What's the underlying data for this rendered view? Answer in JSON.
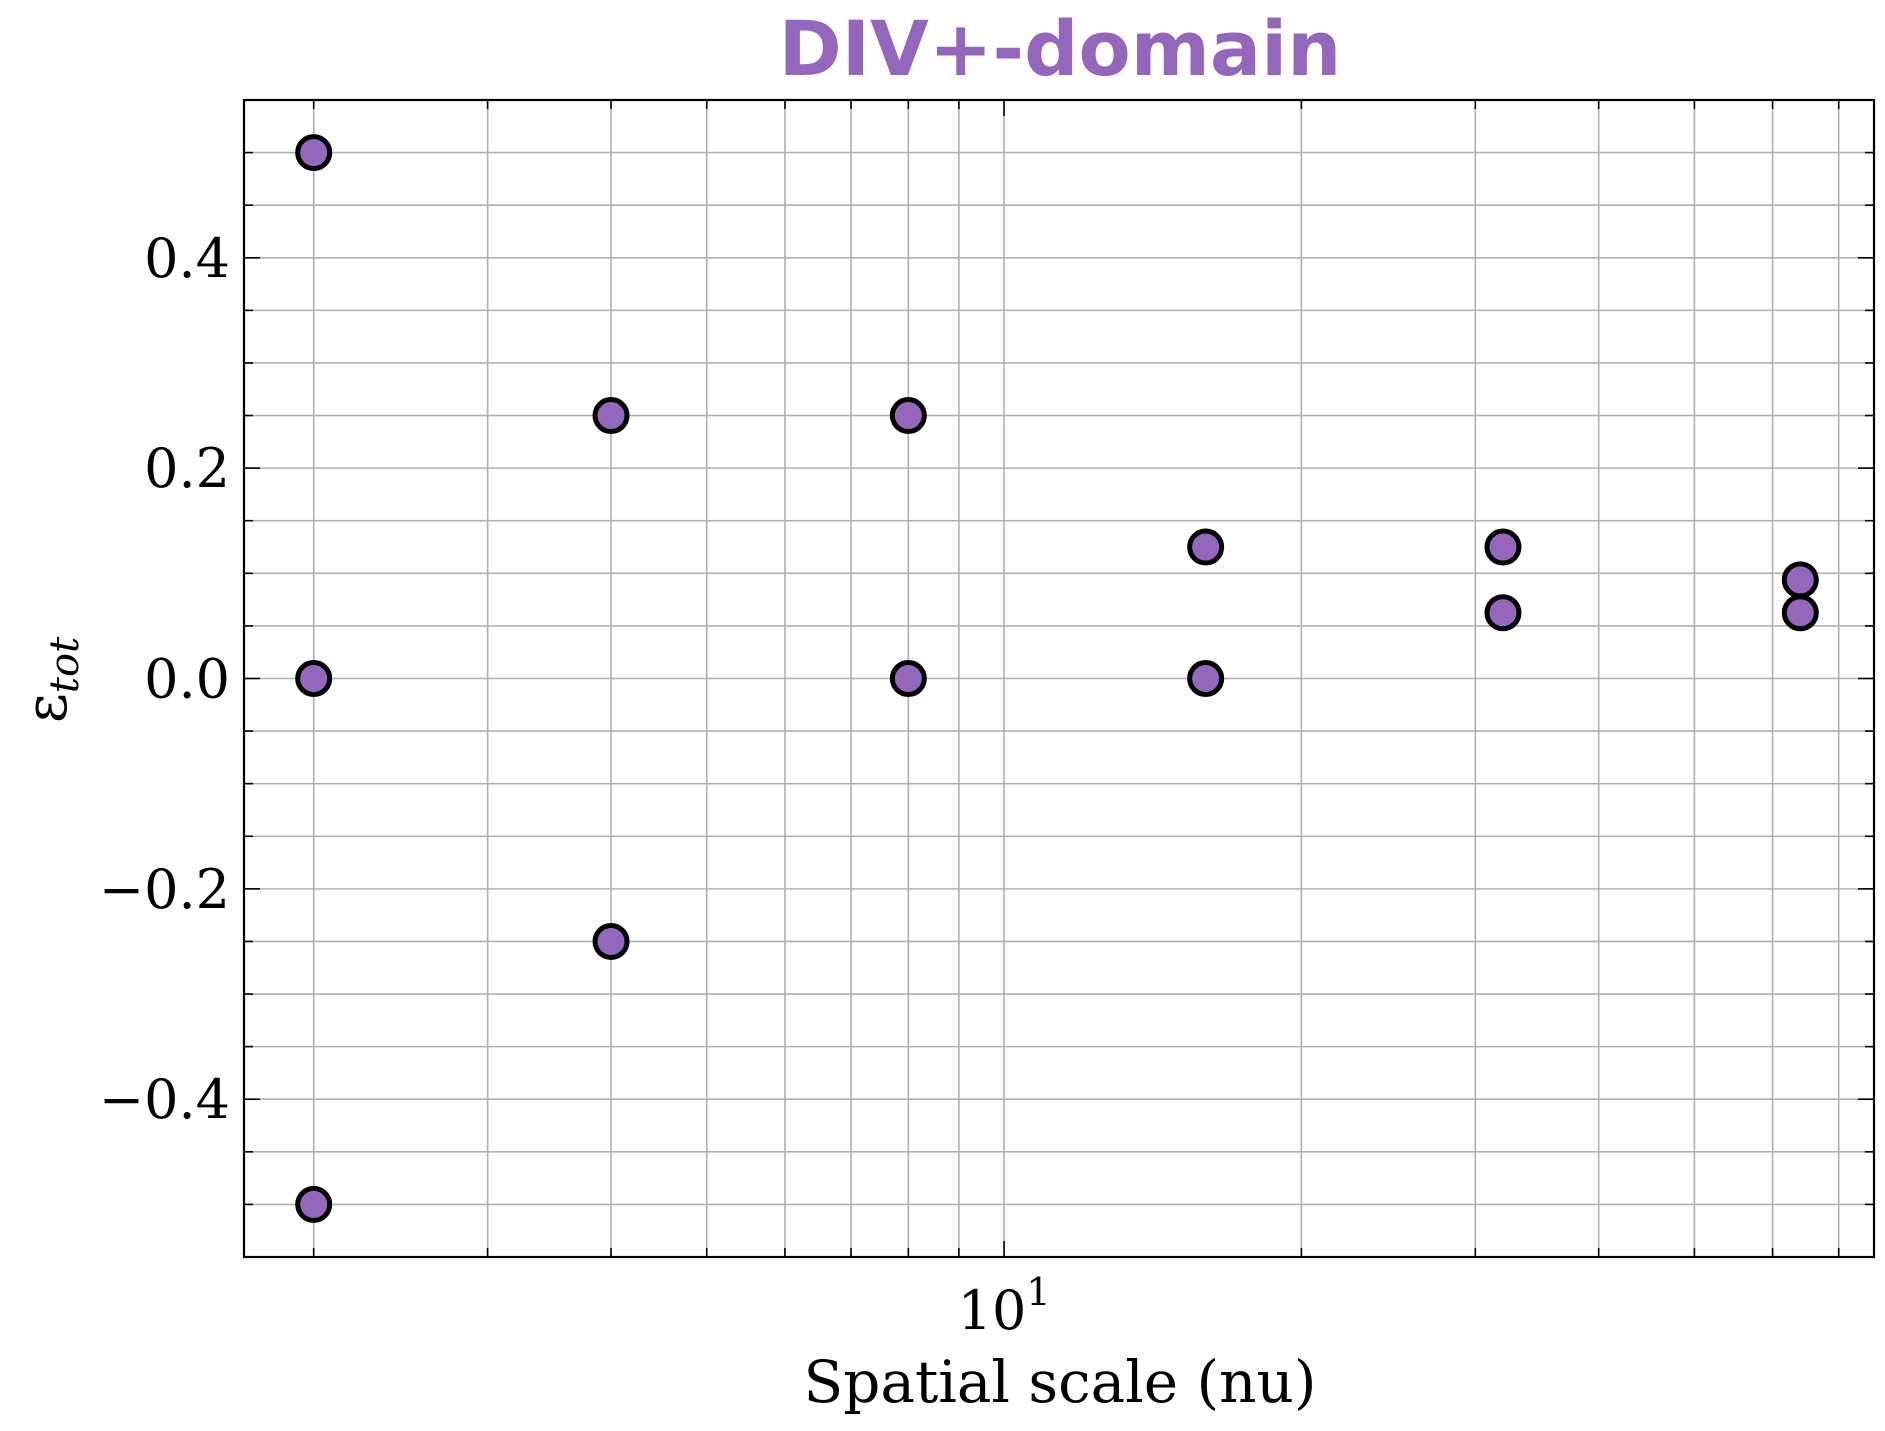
{
  "chart_data": {
    "type": "scatter",
    "title": "DIV+-domain",
    "xlabel": "Spatial scale (nu)",
    "ylabel": "ε",
    "ylabel_subscript": "tot",
    "x_scale": "log",
    "xlim": [
      1.7,
      76
    ],
    "ylim": [
      -0.55,
      0.55
    ],
    "x_major_ticks": [
      {
        "value": 10,
        "base": "10",
        "exponent": "1"
      }
    ],
    "y_major_ticks": [
      {
        "value": -0.4,
        "label": "−0.4"
      },
      {
        "value": -0.2,
        "label": "−0.2"
      },
      {
        "value": 0.0,
        "label": "0.0"
      },
      {
        "value": 0.2,
        "label": "0.2"
      },
      {
        "value": 0.4,
        "label": "0.4"
      }
    ],
    "grid": true,
    "colors": {
      "title": "#9467bd",
      "marker": "#9467bd",
      "edge": "#000000"
    },
    "points": [
      {
        "x": 2,
        "y": 0.5
      },
      {
        "x": 2,
        "y": 0.0
      },
      {
        "x": 2,
        "y": -0.5
      },
      {
        "x": 4,
        "y": 0.25
      },
      {
        "x": 4,
        "y": -0.25
      },
      {
        "x": 8,
        "y": 0.25
      },
      {
        "x": 8,
        "y": 0.0
      },
      {
        "x": 16,
        "y": 0.125
      },
      {
        "x": 16,
        "y": 0.0
      },
      {
        "x": 32,
        "y": 0.125
      },
      {
        "x": 32,
        "y": 0.0625
      },
      {
        "x": 64,
        "y": 0.09375
      },
      {
        "x": 64,
        "y": 0.0625
      }
    ]
  }
}
